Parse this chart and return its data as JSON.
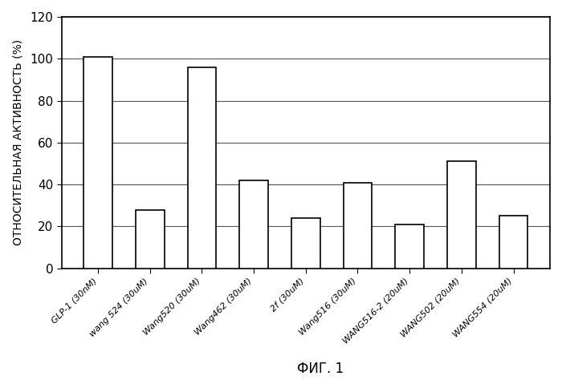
{
  "categories": [
    "GLP-1 (30nM)",
    "wang 524 (30uM)",
    "Wang520 (30uM)",
    "Wang462 (30uM)",
    "2f (30uM)",
    "Wang516 (30uM)",
    "WANG516-2 (20uM)",
    "WANG502 (20uM)",
    "WANG554 (20uM)"
  ],
  "values": [
    101,
    28,
    96,
    42,
    24,
    41,
    21,
    51,
    25
  ],
  "bar_color": "#ffffff",
  "bar_edgecolor": "#000000",
  "ylabel": "ОТНОСИТЕЛЬНАЯ АКТИВНОСТЬ (%)",
  "caption": "ФИГ. 1",
  "ylim": [
    0,
    120
  ],
  "yticks": [
    0,
    20,
    40,
    60,
    80,
    100,
    120
  ],
  "ylabel_fontsize": 10,
  "caption_fontsize": 12,
  "ytick_fontsize": 11,
  "xtick_fontsize": 8,
  "background_color": "#ffffff",
  "figure_facecolor": "#ffffff",
  "grid_color": "#555555",
  "bar_width": 0.55
}
